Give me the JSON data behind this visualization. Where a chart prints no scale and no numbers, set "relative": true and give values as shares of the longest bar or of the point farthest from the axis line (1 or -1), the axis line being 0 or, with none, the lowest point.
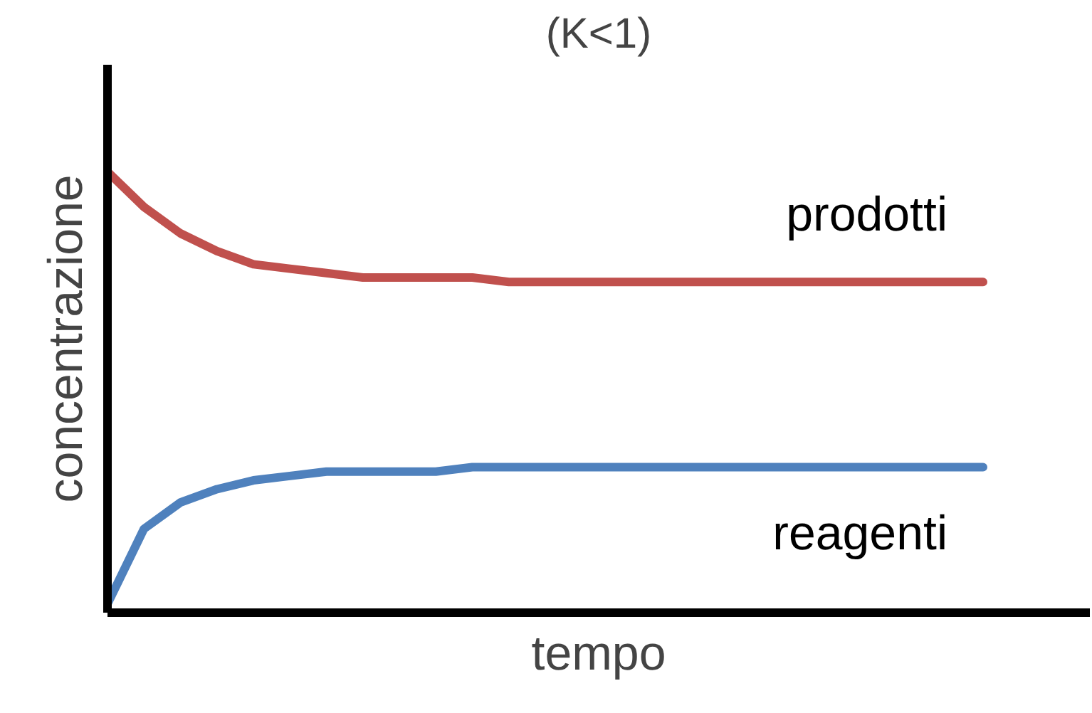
{
  "chart_data": {
    "type": "line",
    "title": "(K<1)",
    "xlabel": "tempo",
    "ylabel": "concentrazione",
    "relative": true,
    "categories": [
      null,
      null,
      null,
      null,
      null,
      null,
      null,
      null,
      null,
      null,
      null,
      null,
      null,
      null,
      null,
      null,
      null,
      null,
      null,
      null,
      null,
      null,
      null,
      null,
      null
    ],
    "series": [
      {
        "name": "prodotti",
        "color": "#c0504d",
        "values": [
          1.0,
          0.92,
          0.86,
          0.82,
          0.79,
          0.78,
          0.77,
          0.76,
          0.76,
          0.76,
          0.76,
          0.75,
          0.75,
          0.75,
          0.75,
          0.75,
          0.75,
          0.75,
          0.75,
          0.75,
          0.75,
          0.75,
          0.75,
          0.75,
          0.75
        ]
      },
      {
        "name": "reagenti",
        "color": "#4f81bd",
        "values": [
          0.02,
          0.19,
          0.25,
          0.28,
          0.3,
          0.31,
          0.32,
          0.32,
          0.32,
          0.32,
          0.33,
          0.33,
          0.33,
          0.33,
          0.33,
          0.33,
          0.33,
          0.33,
          0.33,
          0.33,
          0.33,
          0.33,
          0.33,
          0.33,
          0.33
        ]
      }
    ]
  }
}
